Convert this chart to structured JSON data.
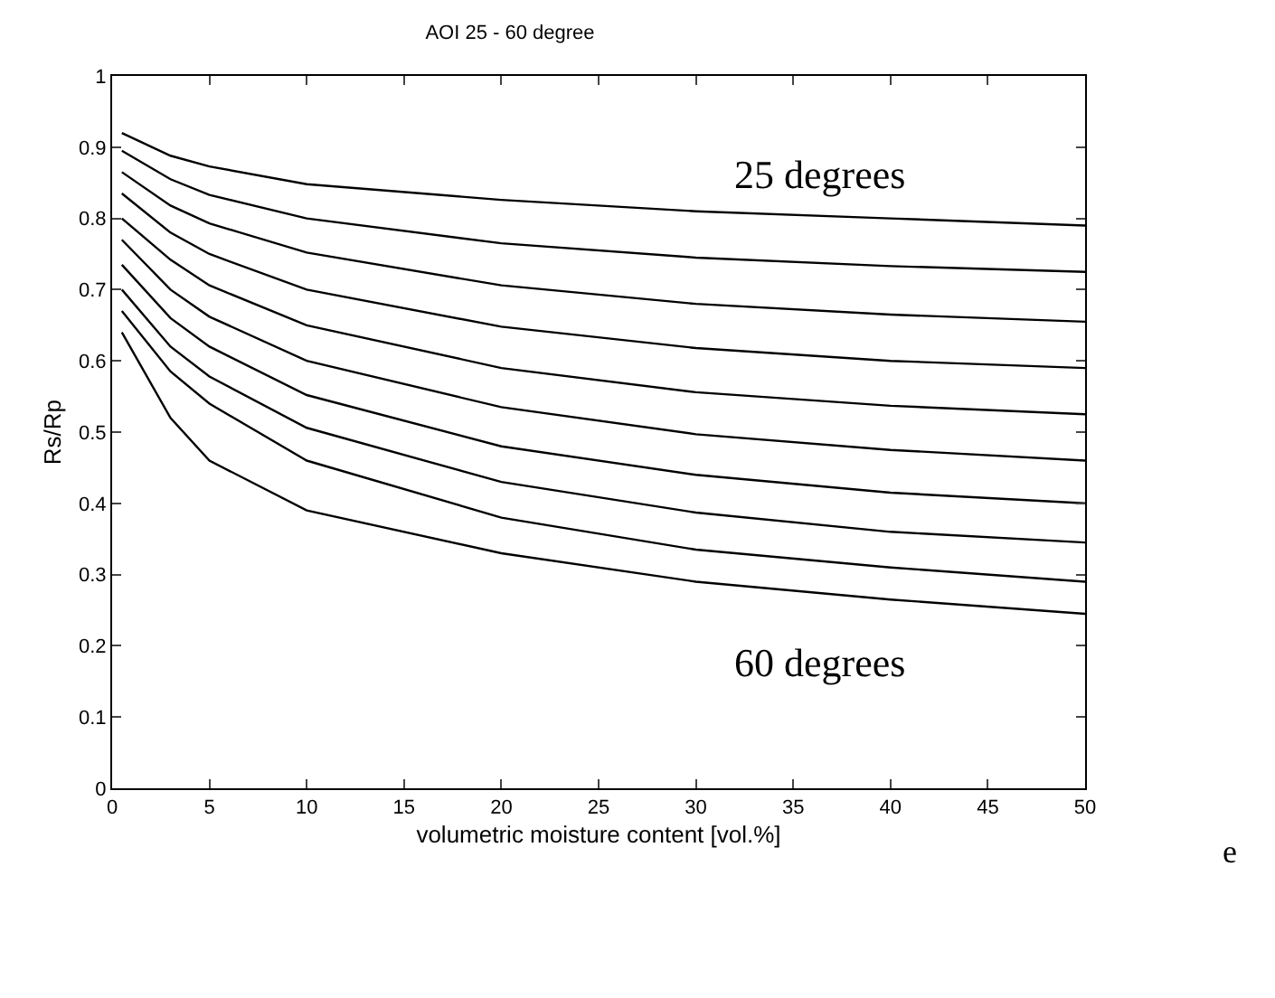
{
  "chart_data": {
    "type": "line",
    "title": "AOI 25 - 60 degree",
    "xlabel": "volumetric moisture content [vol.%]",
    "ylabel": "Rs/Rp",
    "x": [
      0.5,
      3,
      5,
      10,
      20,
      30,
      40,
      50
    ],
    "series": [
      {
        "color": "#000000",
        "values": [
          0.92,
          0.888,
          0.873,
          0.848,
          0.826,
          0.81,
          0.8,
          0.79
        ]
      },
      {
        "color": "#000000",
        "values": [
          0.895,
          0.855,
          0.833,
          0.8,
          0.765,
          0.745,
          0.733,
          0.725
        ]
      },
      {
        "color": "#000000",
        "values": [
          0.865,
          0.818,
          0.793,
          0.752,
          0.706,
          0.68,
          0.665,
          0.655
        ]
      },
      {
        "color": "#000000",
        "values": [
          0.835,
          0.78,
          0.75,
          0.7,
          0.648,
          0.618,
          0.6,
          0.59
        ]
      },
      {
        "color": "#000000",
        "values": [
          0.8,
          0.742,
          0.706,
          0.65,
          0.59,
          0.556,
          0.537,
          0.525
        ]
      },
      {
        "color": "#000000",
        "values": [
          0.77,
          0.7,
          0.662,
          0.6,
          0.535,
          0.497,
          0.475,
          0.46
        ]
      },
      {
        "color": "#000000",
        "values": [
          0.735,
          0.66,
          0.62,
          0.552,
          0.48,
          0.44,
          0.415,
          0.4
        ]
      },
      {
        "color": "#000000",
        "values": [
          0.7,
          0.62,
          0.578,
          0.506,
          0.43,
          0.387,
          0.36,
          0.345
        ]
      },
      {
        "color": "#000000",
        "values": [
          0.67,
          0.585,
          0.54,
          0.46,
          0.38,
          0.335,
          0.31,
          0.29
        ]
      },
      {
        "color": "#000000",
        "values": [
          0.64,
          0.52,
          0.46,
          0.39,
          0.33,
          0.29,
          0.265,
          0.245
        ]
      }
    ],
    "annotations": [
      "25 degrees",
      "60 degrees",
      "e"
    ],
    "xlim": [
      0,
      50
    ],
    "xticks": [
      0,
      5,
      10,
      15,
      20,
      25,
      30,
      35,
      40,
      45,
      50
    ],
    "ylim": [
      0,
      1
    ],
    "yticks": [
      0,
      0.1,
      0.2,
      0.3,
      0.4,
      0.5,
      0.6,
      0.7,
      0.8,
      0.9,
      1
    ],
    "grid": false,
    "marker": "none",
    "line_style": "solid"
  }
}
